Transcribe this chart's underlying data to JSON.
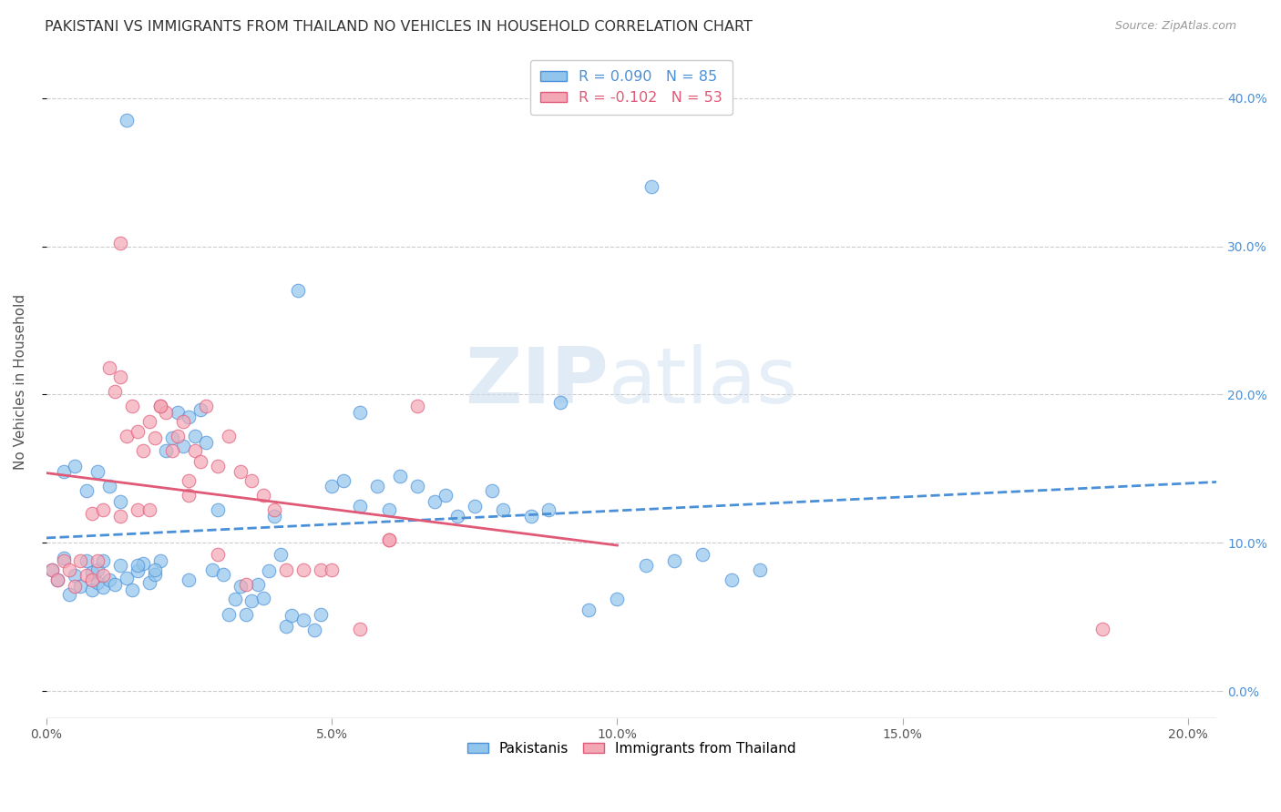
{
  "title": "PAKISTANI VS IMMIGRANTS FROM THAILAND NO VEHICLES IN HOUSEHOLD CORRELATION CHART",
  "source": "Source: ZipAtlas.com",
  "ylabel": "No Vehicles in Household",
  "xlim": [
    0.0,
    0.205
  ],
  "ylim": [
    -0.018,
    0.435
  ],
  "r_pakistani": 0.09,
  "n_pakistani": 85,
  "r_thailand": -0.102,
  "n_thailand": 53,
  "legend_label1": "Pakistanis",
  "legend_label2": "Immigrants from Thailand",
  "color_blue": "#92C5EC",
  "color_pink": "#F4A7B5",
  "color_blue_line": "#4A90D9",
  "color_pink_line": "#E05A78",
  "watermark_zip": "ZIP",
  "watermark_atlas": "atlas",
  "pk_x": [
    0.014,
    0.044,
    0.106,
    0.001,
    0.002,
    0.003,
    0.004,
    0.005,
    0.006,
    0.007,
    0.008,
    0.008,
    0.009,
    0.009,
    0.01,
    0.01,
    0.011,
    0.012,
    0.013,
    0.014,
    0.015,
    0.016,
    0.017,
    0.018,
    0.019,
    0.02,
    0.021,
    0.022,
    0.023,
    0.024,
    0.025,
    0.026,
    0.027,
    0.028,
    0.029,
    0.03,
    0.031,
    0.032,
    0.033,
    0.034,
    0.035,
    0.036,
    0.037,
    0.038,
    0.039,
    0.04,
    0.041,
    0.042,
    0.043,
    0.045,
    0.047,
    0.048,
    0.05,
    0.052,
    0.055,
    0.058,
    0.06,
    0.062,
    0.065,
    0.068,
    0.07,
    0.072,
    0.075,
    0.078,
    0.08,
    0.085,
    0.088,
    0.09,
    0.095,
    0.1,
    0.105,
    0.11,
    0.115,
    0.12,
    0.125,
    0.003,
    0.005,
    0.007,
    0.009,
    0.011,
    0.013,
    0.016,
    0.019,
    0.025,
    0.055
  ],
  "pk_y": [
    0.385,
    0.27,
    0.34,
    0.082,
    0.075,
    0.09,
    0.065,
    0.078,
    0.071,
    0.088,
    0.08,
    0.068,
    0.073,
    0.082,
    0.088,
    0.07,
    0.075,
    0.072,
    0.085,
    0.076,
    0.068,
    0.081,
    0.086,
    0.073,
    0.079,
    0.088,
    0.162,
    0.171,
    0.188,
    0.165,
    0.185,
    0.172,
    0.19,
    0.168,
    0.082,
    0.122,
    0.079,
    0.052,
    0.062,
    0.071,
    0.052,
    0.061,
    0.072,
    0.063,
    0.081,
    0.118,
    0.092,
    0.044,
    0.051,
    0.048,
    0.041,
    0.052,
    0.138,
    0.142,
    0.125,
    0.138,
    0.122,
    0.145,
    0.138,
    0.128,
    0.132,
    0.118,
    0.125,
    0.135,
    0.122,
    0.118,
    0.122,
    0.195,
    0.055,
    0.062,
    0.085,
    0.088,
    0.092,
    0.075,
    0.082,
    0.148,
    0.152,
    0.135,
    0.148,
    0.138,
    0.128,
    0.085,
    0.082,
    0.075,
    0.188
  ],
  "th_x": [
    0.013,
    0.001,
    0.002,
    0.003,
    0.004,
    0.005,
    0.006,
    0.007,
    0.008,
    0.009,
    0.01,
    0.011,
    0.012,
    0.013,
    0.014,
    0.015,
    0.016,
    0.017,
    0.018,
    0.019,
    0.02,
    0.021,
    0.022,
    0.023,
    0.024,
    0.025,
    0.026,
    0.027,
    0.028,
    0.03,
    0.032,
    0.034,
    0.036,
    0.038,
    0.04,
    0.042,
    0.045,
    0.048,
    0.05,
    0.055,
    0.06,
    0.065,
    0.008,
    0.01,
    0.013,
    0.016,
    0.018,
    0.02,
    0.025,
    0.03,
    0.035,
    0.185,
    0.06
  ],
  "th_y": [
    0.302,
    0.082,
    0.075,
    0.088,
    0.082,
    0.071,
    0.088,
    0.078,
    0.075,
    0.088,
    0.078,
    0.218,
    0.202,
    0.212,
    0.172,
    0.192,
    0.175,
    0.162,
    0.182,
    0.171,
    0.192,
    0.188,
    0.162,
    0.172,
    0.182,
    0.132,
    0.162,
    0.155,
    0.192,
    0.152,
    0.172,
    0.148,
    0.142,
    0.132,
    0.122,
    0.082,
    0.082,
    0.082,
    0.082,
    0.042,
    0.102,
    0.192,
    0.12,
    0.122,
    0.118,
    0.122,
    0.122,
    0.192,
    0.142,
    0.092,
    0.072,
    0.042,
    0.102
  ]
}
